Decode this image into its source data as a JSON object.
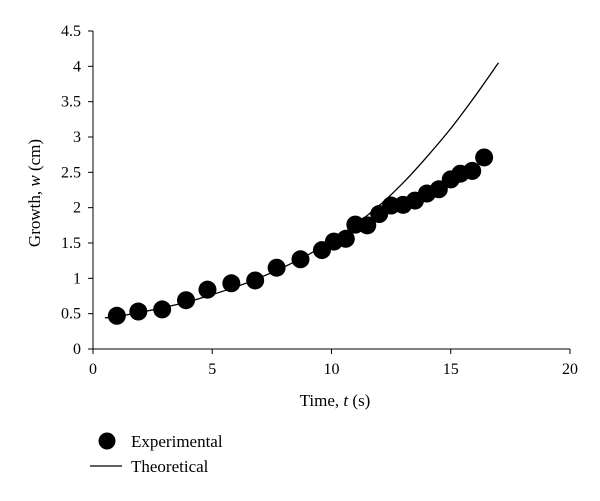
{
  "chart_data": {
    "type": "scatter",
    "title": "",
    "xlabel": {
      "prefix": "Time, ",
      "var": "t",
      "unit": " (s)"
    },
    "ylabel": {
      "prefix": "Growth, ",
      "var": "w",
      "unit": " (cm)"
    },
    "xlim": [
      0,
      20
    ],
    "ylim": [
      0,
      4.5
    ],
    "xticks": [
      0,
      5,
      10,
      15,
      20
    ],
    "yticks": [
      0,
      0.5,
      1,
      1.5,
      2,
      2.5,
      3,
      3.5,
      4,
      4.5
    ],
    "xtick_labels": [
      "0",
      "5",
      "10",
      "15",
      "20"
    ],
    "ytick_labels": [
      "0",
      "0.5",
      "1",
      "1.5",
      "2",
      "2.5",
      "3",
      "3.5",
      "4",
      "4.5"
    ],
    "grid": false,
    "legend_position": "bottom-left",
    "series": [
      {
        "name": "Experimental",
        "type": "scatter",
        "marker": "filled-circle",
        "color": "#000000",
        "x": [
          1.0,
          1.9,
          2.9,
          3.9,
          4.8,
          5.8,
          6.8,
          7.7,
          8.7,
          9.6,
          10.1,
          10.6,
          11.0,
          11.5,
          12.0,
          12.5,
          13.0,
          13.5,
          14.0,
          14.5,
          15.0,
          15.4,
          15.9,
          16.4
        ],
        "y": [
          0.47,
          0.53,
          0.56,
          0.69,
          0.84,
          0.93,
          0.97,
          1.15,
          1.27,
          1.4,
          1.52,
          1.56,
          1.76,
          1.75,
          1.91,
          2.03,
          2.04,
          2.1,
          2.2,
          2.26,
          2.4,
          2.48,
          2.52,
          2.71
        ]
      },
      {
        "name": "Theoretical",
        "type": "line",
        "color": "#000000",
        "x": [
          0.5,
          1,
          2,
          3,
          4,
          5,
          6,
          7,
          8,
          9,
          10,
          11,
          12,
          13,
          14,
          15,
          16,
          17
        ],
        "y": [
          0.44,
          0.46,
          0.52,
          0.59,
          0.67,
          0.77,
          0.88,
          1.01,
          1.16,
          1.33,
          1.53,
          1.76,
          2.03,
          2.35,
          2.72,
          3.12,
          3.57,
          4.05
        ]
      }
    ]
  }
}
